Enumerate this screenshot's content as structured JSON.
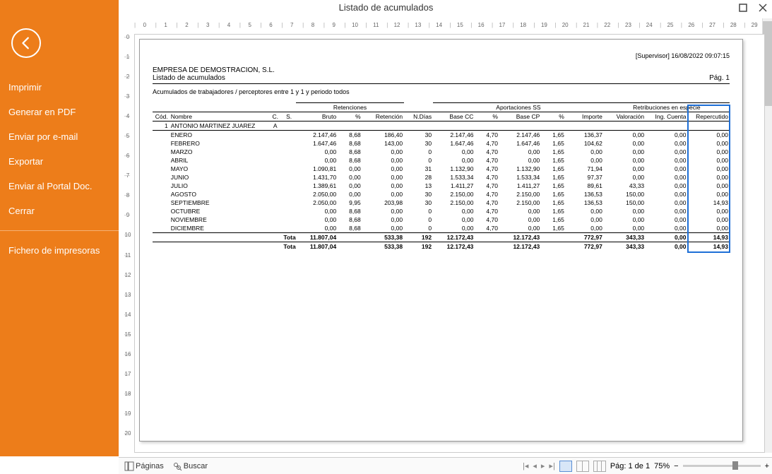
{
  "window": {
    "title": "Listado de acumulados"
  },
  "sidebar": {
    "items": [
      "Imprimir",
      "Generar en PDF",
      "Enviar por e-mail",
      "Exportar",
      "Enviar al Portal Doc.",
      "Cerrar"
    ],
    "footer_item": "Fichero de impresoras",
    "bg_color": "#ed7d1a"
  },
  "report": {
    "stamp": "[Supervisor] 16/08/2022 09:07:15",
    "company": "EMPRESA DE DEMOSTRACION, S.L.",
    "subtitle": "Listado de acumulados",
    "page_label": "Pág. 1",
    "filter": "Acumulados de trabajadores / perceptores entre 1 y 1 y periodo todos",
    "group_headers": {
      "retenciones": "Retenciones",
      "aportaciones": "Aportaciones SS",
      "retribuciones": "Retribuciones en especie"
    },
    "columns": [
      "Cód.",
      "Nombre",
      "C.",
      "S.",
      "Bruto",
      "%",
      "Retención",
      "N.Días",
      "Base CC",
      "%",
      "Base CP",
      "%",
      "Importe",
      "Valoración",
      "Ing. Cuenta",
      "Repercutido"
    ],
    "employee": {
      "cod": "1",
      "nombre": "ANTONIO MARTINEZ JUAREZ",
      "c": "A",
      "s": ""
    },
    "rows": [
      {
        "mes": "ENERO",
        "bruto": "2.147,46",
        "pct": "8,68",
        "ret": "186,40",
        "ndias": "30",
        "bcc": "2.147,46",
        "pct2": "4,70",
        "bcp": "2.147,46",
        "pct3": "1,65",
        "imp": "136,37",
        "val": "0,00",
        "ing": "0,00",
        "rep": "0,00"
      },
      {
        "mes": "FEBRERO",
        "bruto": "1.647,46",
        "pct": "8,68",
        "ret": "143,00",
        "ndias": "30",
        "bcc": "1.647,46",
        "pct2": "4,70",
        "bcp": "1.647,46",
        "pct3": "1,65",
        "imp": "104,62",
        "val": "0,00",
        "ing": "0,00",
        "rep": "0,00"
      },
      {
        "mes": "MARZO",
        "bruto": "0,00",
        "pct": "8,68",
        "ret": "0,00",
        "ndias": "0",
        "bcc": "0,00",
        "pct2": "4,70",
        "bcp": "0,00",
        "pct3": "1,65",
        "imp": "0,00",
        "val": "0,00",
        "ing": "0,00",
        "rep": "0,00"
      },
      {
        "mes": "ABRIL",
        "bruto": "0,00",
        "pct": "8,68",
        "ret": "0,00",
        "ndias": "0",
        "bcc": "0,00",
        "pct2": "4,70",
        "bcp": "0,00",
        "pct3": "1,65",
        "imp": "0,00",
        "val": "0,00",
        "ing": "0,00",
        "rep": "0,00"
      },
      {
        "mes": "MAYO",
        "bruto": "1.090,81",
        "pct": "0,00",
        "ret": "0,00",
        "ndias": "31",
        "bcc": "1.132,90",
        "pct2": "4,70",
        "bcp": "1.132,90",
        "pct3": "1,65",
        "imp": "71,94",
        "val": "0,00",
        "ing": "0,00",
        "rep": "0,00"
      },
      {
        "mes": "JUNIO",
        "bruto": "1.431,70",
        "pct": "0,00",
        "ret": "0,00",
        "ndias": "28",
        "bcc": "1.533,34",
        "pct2": "4,70",
        "bcp": "1.533,34",
        "pct3": "1,65",
        "imp": "97,37",
        "val": "0,00",
        "ing": "0,00",
        "rep": "0,00"
      },
      {
        "mes": "JULIO",
        "bruto": "1.389,61",
        "pct": "0,00",
        "ret": "0,00",
        "ndias": "13",
        "bcc": "1.411,27",
        "pct2": "4,70",
        "bcp": "1.411,27",
        "pct3": "1,65",
        "imp": "89,61",
        "val": "43,33",
        "ing": "0,00",
        "rep": "0,00"
      },
      {
        "mes": "AGOSTO",
        "bruto": "2.050,00",
        "pct": "0,00",
        "ret": "0,00",
        "ndias": "30",
        "bcc": "2.150,00",
        "pct2": "4,70",
        "bcp": "2.150,00",
        "pct3": "1,65",
        "imp": "136,53",
        "val": "150,00",
        "ing": "0,00",
        "rep": "0,00"
      },
      {
        "mes": "SEPTIEMBRE",
        "bruto": "2.050,00",
        "pct": "9,95",
        "ret": "203,98",
        "ndias": "30",
        "bcc": "2.150,00",
        "pct2": "4,70",
        "bcp": "2.150,00",
        "pct3": "1,65",
        "imp": "136,53",
        "val": "150,00",
        "ing": "0,00",
        "rep": "14,93"
      },
      {
        "mes": "OCTUBRE",
        "bruto": "0,00",
        "pct": "8,68",
        "ret": "0,00",
        "ndias": "0",
        "bcc": "0,00",
        "pct2": "4,70",
        "bcp": "0,00",
        "pct3": "1,65",
        "imp": "0,00",
        "val": "0,00",
        "ing": "0,00",
        "rep": "0,00"
      },
      {
        "mes": "NOVIEMBRE",
        "bruto": "0,00",
        "pct": "8,68",
        "ret": "0,00",
        "ndias": "0",
        "bcc": "0,00",
        "pct2": "4,70",
        "bcp": "0,00",
        "pct3": "1,65",
        "imp": "0,00",
        "val": "0,00",
        "ing": "0,00",
        "rep": "0,00"
      },
      {
        "mes": "DICIEMBRE",
        "bruto": "0,00",
        "pct": "8,68",
        "ret": "0,00",
        "ndias": "0",
        "bcc": "0,00",
        "pct2": "4,70",
        "bcp": "0,00",
        "pct3": "1,65",
        "imp": "0,00",
        "val": "0,00",
        "ing": "0,00",
        "rep": "0,00"
      }
    ],
    "subtotal": {
      "label": "Total:",
      "bruto": "11.807,04",
      "ret": "533,38",
      "ndias": "192",
      "bcc": "12.172,43",
      "bcp": "12.172,43",
      "imp": "772,97",
      "val": "343,33",
      "ing": "0,00",
      "rep": "14,93"
    },
    "grandtotal": {
      "label": "Total:",
      "bruto": "11.807,04",
      "ret": "533,38",
      "ndias": "192",
      "bcc": "12.172,43",
      "bcp": "12.172,43",
      "imp": "772,97",
      "val": "343,33",
      "ing": "0,00",
      "rep": "14,93"
    }
  },
  "status": {
    "paginas": "Páginas",
    "buscar": "Buscar",
    "page_info": "Pág: 1 de 1",
    "zoom": "75%"
  }
}
